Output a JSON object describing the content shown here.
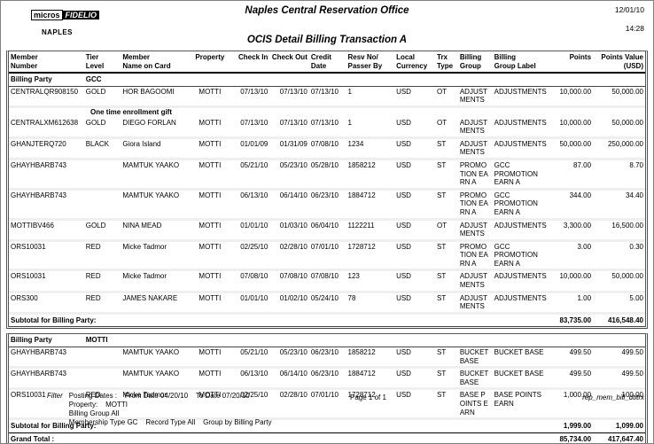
{
  "logo": {
    "brand_left": "micros",
    "brand_right": "FIDELIO",
    "property_code": "NAPLES"
  },
  "header": {
    "office_title": "Naples Central Reservation Office",
    "report_title": "OCIS Detail Billing Transaction A",
    "print_date": "12/01/10",
    "print_time": "14:28"
  },
  "table": {
    "group_row_label": "Billing Party",
    "columns": [
      "Member\nNumber",
      "Tier\nLevel",
      "Member\nName on Card",
      "Property",
      "Check In",
      "Check Out",
      "Credit\nDate",
      "Resv No/\nPasser By",
      "Local\nCurrency",
      "Trx\nType",
      "Billing\nGroup",
      "Billing\nGroup Label",
      "Points",
      "Points Value\n(USD)"
    ],
    "groups": [
      {
        "billing_party": "GCC",
        "rows": [
          {
            "cells": [
              "CENTRALQR908150",
              "GOLD",
              "HOR BAGOOMI",
              "MOTTI",
              "07/13/10",
              "07/13/10",
              "07/13/10",
              "1",
              "USD",
              "OT",
              "ADJUSTMENTS",
              "ADJUSTMENTS",
              "10,000.00",
              "50,000.00"
            ]
          },
          {
            "note": "One time enrollment gift"
          },
          {
            "cells": [
              "CENTRALXM612638",
              "GOLD",
              "DIEGO FORLAN",
              "MOTTI",
              "07/13/10",
              "07/13/10",
              "07/13/10",
              "1",
              "USD",
              "OT",
              "ADJUSTMENTS",
              "ADJUSTMENTS",
              "10,000.00",
              "50,000.00"
            ]
          },
          {
            "cells": [
              "GHANJTERQ720",
              "BLACK",
              "Giora Island",
              "MOTTI",
              "01/01/09",
              "01/31/09",
              "07/08/10",
              "1234",
              "USD",
              "ST",
              "ADJUSTMENTS",
              "ADJUSTMENTS",
              "50,000.00",
              "250,000.00"
            ]
          },
          {
            "cells": [
              "GHAYHBARB743",
              "",
              "MAMTUK YAAKO",
              "MOTTI",
              "05/21/10",
              "05/23/10",
              "05/28/10",
              "1858212",
              "USD",
              "ST",
              "PROMOTION EARN A",
              "GCC PROMOTION EARN A",
              "87.00",
              "8.70"
            ]
          },
          {
            "cells": [
              "GHAYHBARB743",
              "",
              "MAMTUK YAAKO",
              "MOTTI",
              "06/13/10",
              "06/14/10",
              "06/23/10",
              "1884712",
              "USD",
              "ST",
              "PROMOTION EARN A",
              "GCC PROMOTION EARN A",
              "344.00",
              "34.40"
            ]
          },
          {
            "cells": [
              "MOTTIBV466",
              "GOLD",
              "NINA MEAD",
              "MOTTI",
              "01/01/10",
              "01/03/10",
              "06/04/10",
              "1122211",
              "USD",
              "OT",
              "ADJUSTMENTS",
              "ADJUSTMENTS",
              "3,300.00",
              "16,500.00"
            ]
          },
          {
            "cells": [
              "ORS10031",
              "RED",
              "Micke Tadmor",
              "MOTTI",
              "02/25/10",
              "02/28/10",
              "07/01/10",
              "1728712",
              "USD",
              "ST",
              "PROMOTION EARN A",
              "GCC PROMOTION EARN A",
              "3.00",
              "0.30"
            ]
          },
          {
            "cells": [
              "ORS10031",
              "RED",
              "Micke Tadmor",
              "MOTTI",
              "07/08/10",
              "07/08/10",
              "07/08/10",
              "123",
              "USD",
              "ST",
              "ADJUSTMENTS",
              "ADJUSTMENTS",
              "10,000.00",
              "50,000.00"
            ]
          },
          {
            "cells": [
              "ORS300",
              "RED",
              "JAMES NAKARE",
              "MOTTI",
              "01/01/10",
              "01/02/10",
              "05/24/10",
              "78",
              "USD",
              "ST",
              "ADJUSTMENTS",
              "ADJUSTMENTS",
              "1.00",
              "5.00"
            ]
          }
        ],
        "subtotal": {
          "label": "Subtotal for Billing Party:",
          "points": "83,735.00",
          "points_value": "416,548.40"
        }
      },
      {
        "billing_party": "MOTTI",
        "rows": [
          {
            "cells": [
              "GHAYHBARB743",
              "",
              "MAMTUK YAAKO",
              "MOTTI",
              "05/21/10",
              "05/23/10",
              "06/23/10",
              "1858212",
              "USD",
              "ST",
              "BUCKET BASE",
              "BUCKET BASE",
              "499.50",
              "499.50"
            ]
          },
          {
            "cells": [
              "GHAYHBARB743",
              "",
              "MAMTUK YAAKO",
              "MOTTI",
              "06/13/10",
              "06/14/10",
              "06/23/10",
              "1884712",
              "USD",
              "ST",
              "BUCKET BASE",
              "BUCKET BASE",
              "499.50",
              "499.50"
            ]
          },
          {
            "cells": [
              "ORS10031",
              "RED",
              "Micke Tadmor",
              "MOTTI",
              "02/25/10",
              "02/28/10",
              "07/01/10",
              "1728712",
              "USD",
              "ST",
              "BASE POINTS EARN",
              "BASE POINTS EARN",
              "1,000.00",
              "100.00"
            ]
          }
        ],
        "subtotal": {
          "label": "Subtotal for Billing Party:",
          "points": "1,999.00",
          "points_value": "1,099.00"
        }
      }
    ],
    "grand_total": {
      "label": "Grand Total :",
      "points": "85,734.00",
      "points_value": "417,647.40"
    }
  },
  "footer": {
    "filter_label": "Filter",
    "lines": [
      "Posting Dates :    From Date 04/20/10    To Date 07/20/10",
      "Property:    MOTTI",
      "Billing Group All",
      "Membership Type GC    Record Type All    Group by Billing Party"
    ],
    "page_info": "Page 1 of 1",
    "report_name": "rep_mem_bill_dtltrx"
  }
}
